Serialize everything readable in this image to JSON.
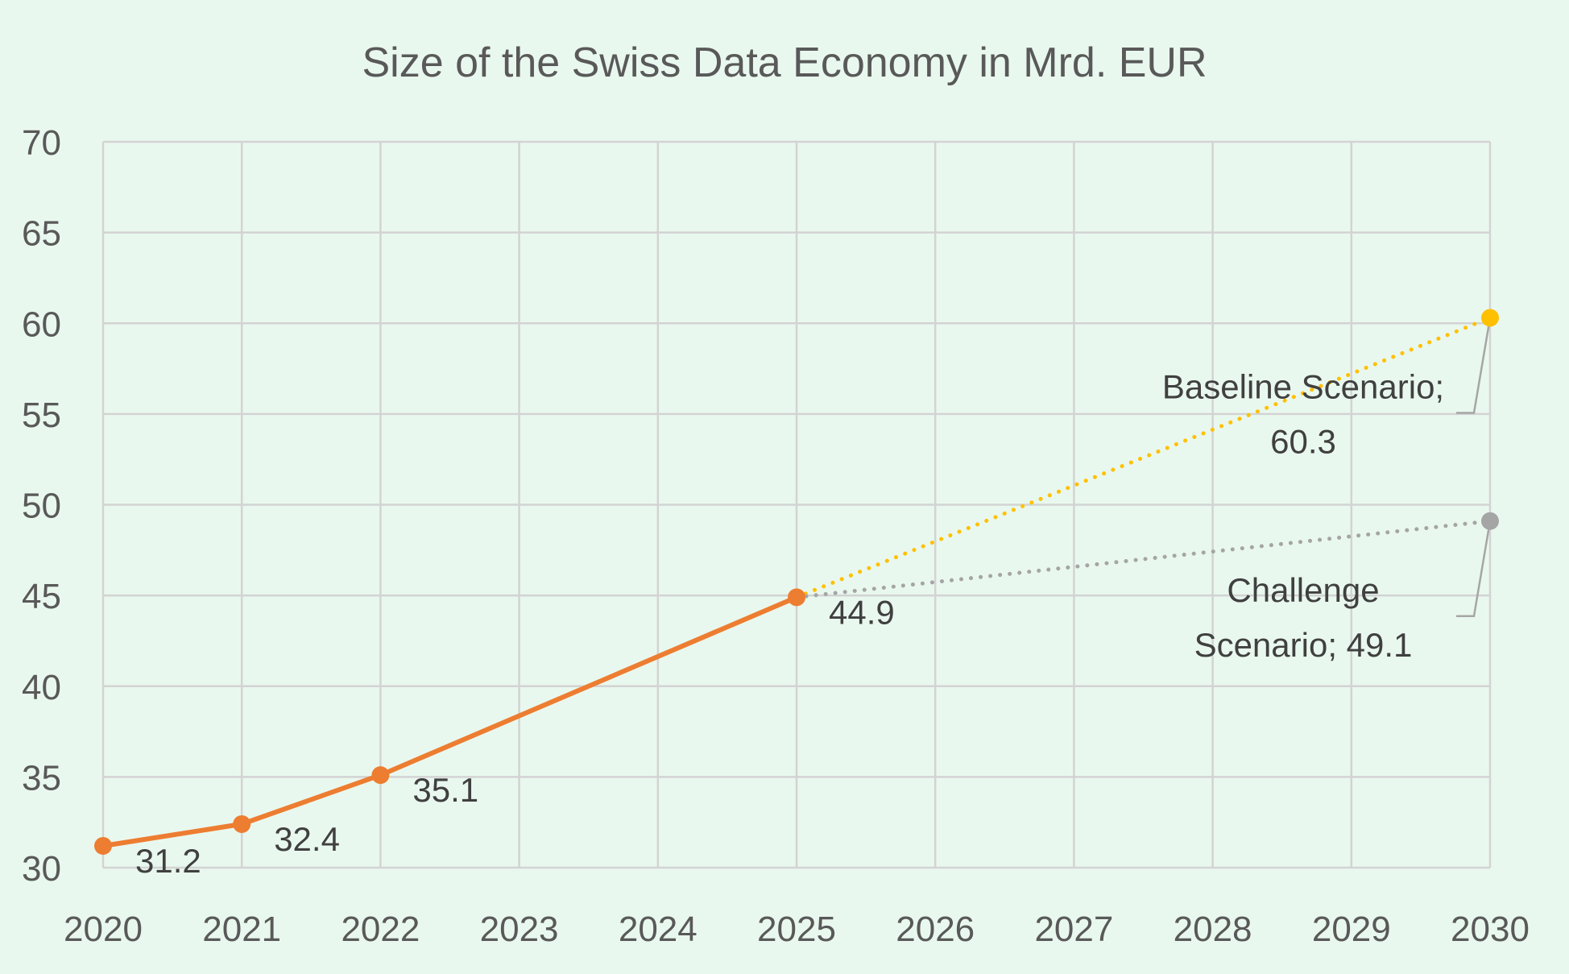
{
  "chart_data": {
    "type": "line",
    "title": "Size of the Swiss Data Economy in Mrd. EUR",
    "xlabel": "",
    "ylabel": "",
    "x": [
      2020,
      2021,
      2022,
      2023,
      2024,
      2025,
      2026,
      2027,
      2028,
      2029,
      2030
    ],
    "xlim": [
      2020,
      2030
    ],
    "ylim": [
      30,
      70
    ],
    "yticks": [
      30,
      35,
      40,
      45,
      50,
      55,
      60,
      65,
      70
    ],
    "grid": true,
    "legend": "none",
    "series": [
      {
        "key": "historical",
        "color": "#ed7d31",
        "style": "solid",
        "points": [
          {
            "x": 2020,
            "y": 31.2,
            "label": "31.2",
            "marker": true
          },
          {
            "x": 2021,
            "y": 32.4,
            "label": "32.4",
            "marker": true
          },
          {
            "x": 2022,
            "y": 35.1,
            "label": "35.1",
            "marker": true
          },
          {
            "x": 2025,
            "y": 44.9,
            "label": "44.9",
            "marker": true
          }
        ]
      },
      {
        "key": "baseline",
        "color": "#ffc000",
        "style": "dotted",
        "points": [
          {
            "x": 2025,
            "y": 44.9,
            "marker": false
          },
          {
            "x": 2030,
            "y": 60.3,
            "marker": true,
            "label_lines": [
              "Baseline Scenario;",
              "60.3"
            ]
          }
        ]
      },
      {
        "key": "challenge",
        "color": "#a5a5a5",
        "style": "dotted",
        "points": [
          {
            "x": 2025,
            "y": 44.9,
            "marker": false
          },
          {
            "x": 2030,
            "y": 49.1,
            "marker": true,
            "label_lines": [
              "Challenge",
              "Scenario; 49.1"
            ]
          }
        ]
      }
    ]
  }
}
